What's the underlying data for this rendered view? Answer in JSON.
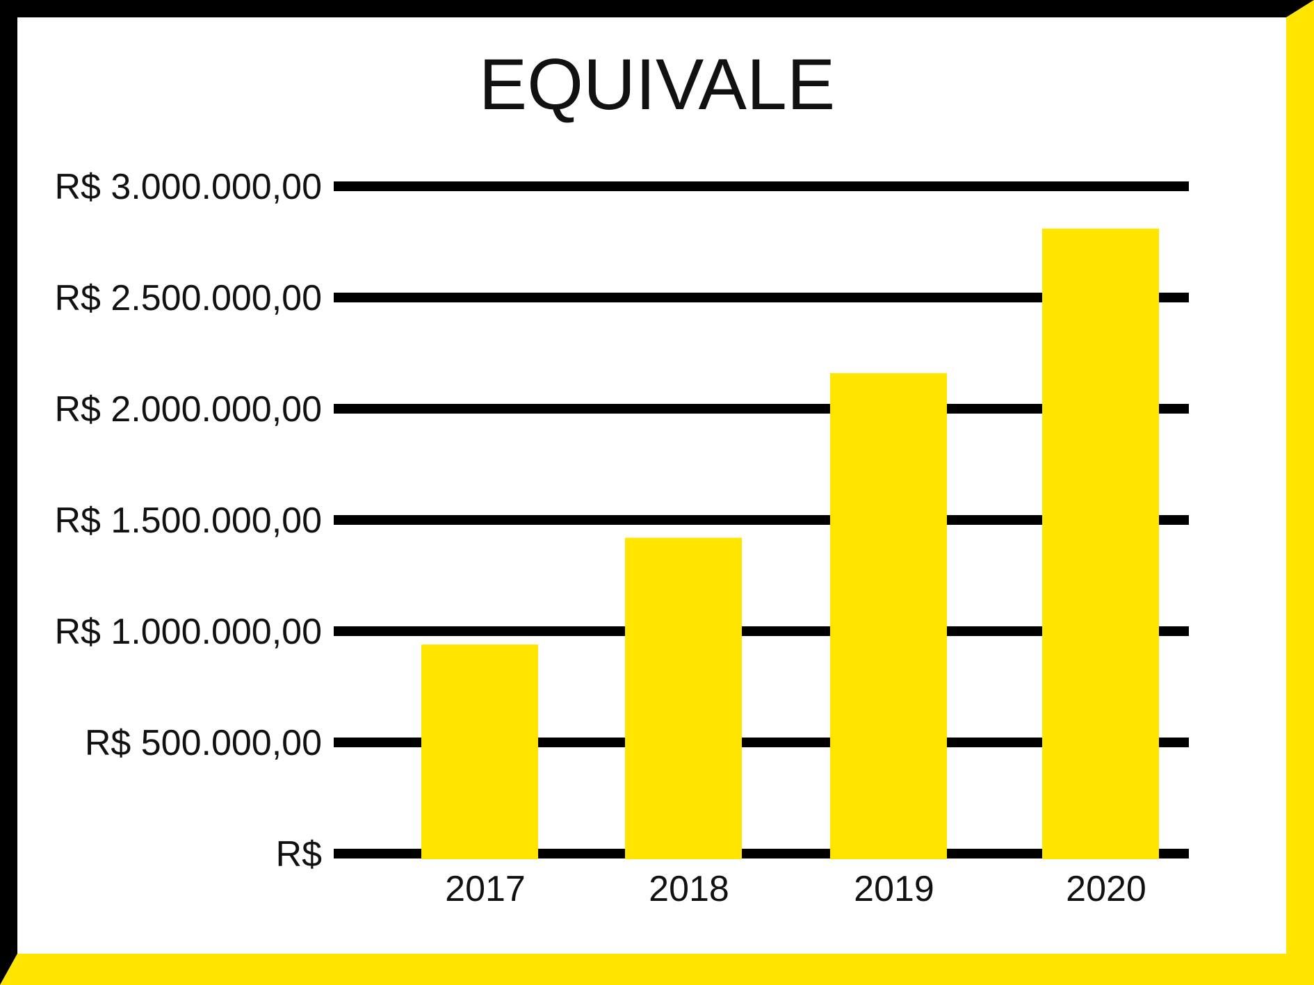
{
  "colors": {
    "background": "#ffffff",
    "frame_dark": "#000000",
    "frame_accent": "#FFE500",
    "bar": "#FFE500",
    "grid": "#000000",
    "text": "#111111"
  },
  "chart_data": {
    "type": "bar",
    "title": "EQUIVALE",
    "xlabel": "",
    "ylabel": "",
    "categories": [
      "2017",
      "2018",
      "2019",
      "2020"
    ],
    "values": [
      940000,
      1420000,
      2160000,
      2810000
    ],
    "ylim": [
      0,
      3000000
    ],
    "yticks": [
      0,
      500000,
      1000000,
      1500000,
      2000000,
      2500000,
      3000000
    ],
    "ytick_labels": [
      "R$",
      "R$ 500.000,00",
      "R$ 1.000.000,00",
      "R$ 1.500.000,00",
      "R$ 2.000.000,00",
      "R$ 2.500.000,00",
      "R$ 3.000.000,00"
    ],
    "grid": true,
    "legend": "none"
  }
}
